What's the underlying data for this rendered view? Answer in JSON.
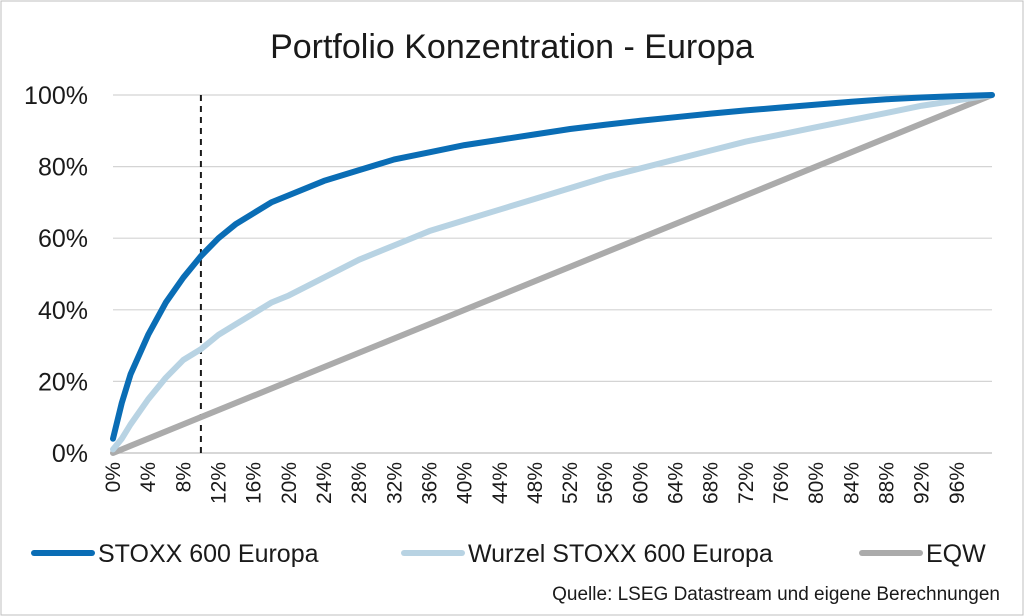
{
  "chart_data": {
    "type": "line",
    "title": "Portfolio Konzentration - Europa",
    "xlabel": "",
    "ylabel": "",
    "xlim": [
      0,
      100
    ],
    "ylim": [
      0,
      100
    ],
    "y_ticks": [
      "0%",
      "20%",
      "40%",
      "60%",
      "80%",
      "100%"
    ],
    "y_tick_values": [
      0,
      20,
      40,
      60,
      80,
      100
    ],
    "x_ticks": [
      "0%",
      "4%",
      "8%",
      "12%",
      "16%",
      "20%",
      "24%",
      "28%",
      "32%",
      "36%",
      "40%",
      "44%",
      "48%",
      "52%",
      "56%",
      "60%",
      "64%",
      "68%",
      "72%",
      "76%",
      "80%",
      "84%",
      "88%",
      "92%",
      "96%"
    ],
    "x_tick_values": [
      0,
      4,
      8,
      12,
      16,
      20,
      24,
      28,
      32,
      36,
      40,
      44,
      48,
      52,
      56,
      60,
      64,
      68,
      72,
      76,
      80,
      84,
      88,
      92,
      96
    ],
    "grid": "horizontal",
    "legend_position": "bottom",
    "reference_line_x": 10,
    "series": [
      {
        "name": "STOXX 600 Europa",
        "color": "#0a6db5",
        "x": [
          0,
          1,
          2,
          4,
          6,
          8,
          10,
          12,
          14,
          16,
          18,
          20,
          24,
          28,
          32,
          36,
          40,
          44,
          48,
          52,
          56,
          60,
          64,
          68,
          72,
          76,
          80,
          84,
          88,
          92,
          96,
          100
        ],
        "y": [
          4,
          14,
          22,
          33,
          42,
          49,
          55,
          60,
          64,
          67,
          70,
          72,
          76,
          79,
          82,
          84,
          86,
          87.5,
          89,
          90.5,
          91.7,
          92.8,
          93.8,
          94.8,
          95.7,
          96.5,
          97.3,
          98.1,
          98.8,
          99.3,
          99.7,
          100
        ]
      },
      {
        "name": "Wurzel STOXX 600 Europa",
        "color": "#b8d3e3",
        "x": [
          0,
          1,
          2,
          4,
          6,
          8,
          10,
          12,
          14,
          16,
          18,
          20,
          24,
          28,
          32,
          36,
          40,
          44,
          48,
          52,
          56,
          60,
          64,
          68,
          72,
          76,
          80,
          84,
          88,
          92,
          96,
          100
        ],
        "y": [
          1,
          4,
          8,
          15,
          21,
          26,
          29,
          33,
          36,
          39,
          42,
          44,
          49,
          54,
          58,
          62,
          65,
          68,
          71,
          74,
          77,
          79.5,
          82,
          84.5,
          87,
          89,
          91,
          93,
          95,
          97,
          98.5,
          100
        ]
      },
      {
        "name": "EQW",
        "color": "#ababab",
        "x": [
          0,
          100
        ],
        "y": [
          0,
          100
        ]
      }
    ]
  },
  "source": "Quelle: LSEG Datastream und eigene Berechnungen"
}
